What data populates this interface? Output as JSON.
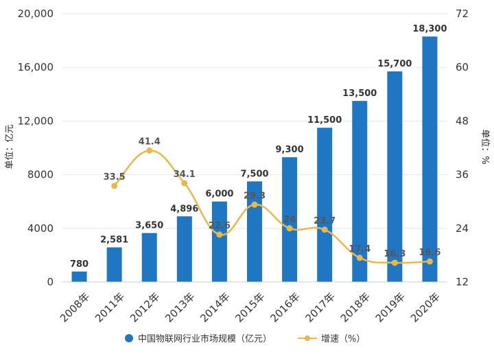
{
  "chart_data": {
    "type": "bar",
    "categories": [
      "2008年",
      "2011年",
      "2012年",
      "2013年",
      "2014年",
      "2015年",
      "2016年",
      "2017年",
      "2018年",
      "2019年",
      "2020年"
    ],
    "series": [
      {
        "name": "中国物联网行业市场规模（亿元）",
        "type": "bar",
        "axis": "left",
        "values": [
          780,
          2581,
          3650,
          4896,
          6000,
          7500,
          9300,
          11500,
          13500,
          15700,
          18300
        ],
        "labels": [
          "780",
          "2,581",
          "3,650",
          "4,896",
          "6,000",
          "7,500",
          "9,300",
          "11,500",
          "13,500",
          "15,700",
          "18,300"
        ]
      },
      {
        "name": "增速（%）",
        "type": "line",
        "axis": "right",
        "values": [
          null,
          33.5,
          41.4,
          34.1,
          22.6,
          29.3,
          24,
          23.7,
          17.4,
          16.3,
          16.6
        ],
        "labels": [
          "",
          "33.5",
          "41.4",
          "34.1",
          "22.6",
          "29.3",
          "24",
          "23.7",
          "17.4",
          "16.3",
          "16.6"
        ]
      }
    ],
    "y_left": {
      "label": "单位：亿元",
      "ylim": [
        0,
        20000
      ],
      "ticks": [
        0,
        4000,
        8000,
        12000,
        16000,
        20000
      ],
      "tick_labels": [
        "0",
        "4000",
        "8000",
        "12,000",
        "16,000",
        "20,000"
      ]
    },
    "y_right": {
      "label": "单位：%",
      "ylim": [
        12,
        72
      ],
      "ticks": [
        12,
        24,
        36,
        48,
        60,
        72
      ],
      "tick_labels": [
        "12",
        "24",
        "36",
        "48",
        "60",
        "72"
      ]
    },
    "grid": true,
    "legend_position": "bottom-center",
    "colors": {
      "bar": "#1f77c4",
      "line": "#e8b84a",
      "grid": "#e6e6e6",
      "axis": "#cccccc"
    }
  }
}
